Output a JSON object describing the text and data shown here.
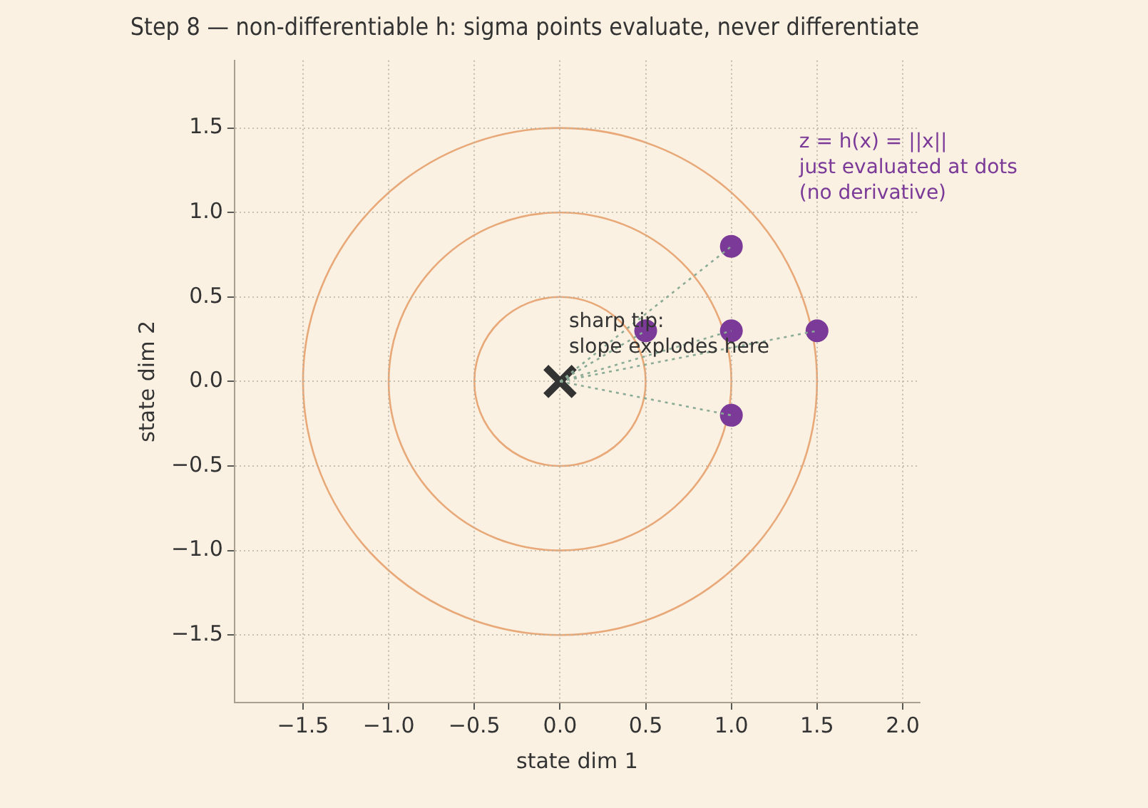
{
  "chart_data": {
    "type": "scatter",
    "title": "Step 8 — non-differentiable h: sigma points evaluate, never differentiate",
    "xlabel": "state dim 1",
    "ylabel": "state dim 2",
    "xlim": [
      -1.9,
      2.1
    ],
    "ylim": [
      -1.9,
      1.9
    ],
    "xticks": [
      {
        "value": -1.5,
        "label": "−1.5"
      },
      {
        "value": -1,
        "label": "−1.0"
      },
      {
        "value": -0.5,
        "label": "−0.5"
      },
      {
        "value": 0,
        "label": "0.0"
      },
      {
        "value": 0.5,
        "label": "0.5"
      },
      {
        "value": 1,
        "label": "1.0"
      },
      {
        "value": 1.5,
        "label": "1.5"
      },
      {
        "value": 2,
        "label": "2.0"
      }
    ],
    "yticks": [
      {
        "value": -1.5,
        "label": "−1.5"
      },
      {
        "value": -1,
        "label": "−1.0"
      },
      {
        "value": -0.5,
        "label": "−0.5"
      },
      {
        "value": 0,
        "label": "0.0"
      },
      {
        "value": 0.5,
        "label": "0.5"
      },
      {
        "value": 1,
        "label": "1.0"
      },
      {
        "value": 1.5,
        "label": "1.5"
      }
    ],
    "grid": true,
    "legend": false,
    "series": [
      {
        "type": "line",
        "color": "#8aab96",
        "line_style": "dotted",
        "x": [
          0,
          0.5
        ],
        "values": [
          0,
          0.3
        ]
      },
      {
        "type": "line",
        "color": "#8aab96",
        "line_style": "dotted",
        "x": [
          0,
          1
        ],
        "values": [
          0,
          0.8
        ]
      },
      {
        "type": "line",
        "color": "#8aab96",
        "line_style": "dotted",
        "x": [
          0,
          1
        ],
        "values": [
          0,
          0.3
        ]
      },
      {
        "type": "line",
        "color": "#8aab96",
        "line_style": "dotted",
        "x": [
          0,
          1.5
        ],
        "values": [
          0,
          0.3
        ]
      },
      {
        "type": "line",
        "color": "#8aab96",
        "line_style": "dotted",
        "x": [
          0,
          1
        ],
        "values": [
          0,
          -0.2
        ]
      },
      {
        "type": "scatter",
        "color": "#7b3a98",
        "marker": "circle",
        "x": [
          0.5,
          1,
          1,
          1.5,
          1
        ],
        "values": [
          0.3,
          0.8,
          0.3,
          0.3,
          -0.2
        ]
      },
      {
        "type": "scatter",
        "color": "#333333",
        "marker": "cross",
        "x": [
          0
        ],
        "values": [
          0
        ]
      }
    ],
    "annotations": [
      "sharp tip:\nslope explodes here",
      "z = h(x) = ||x||\njust evaluated at dots\n(no derivative)"
    ]
  }
}
